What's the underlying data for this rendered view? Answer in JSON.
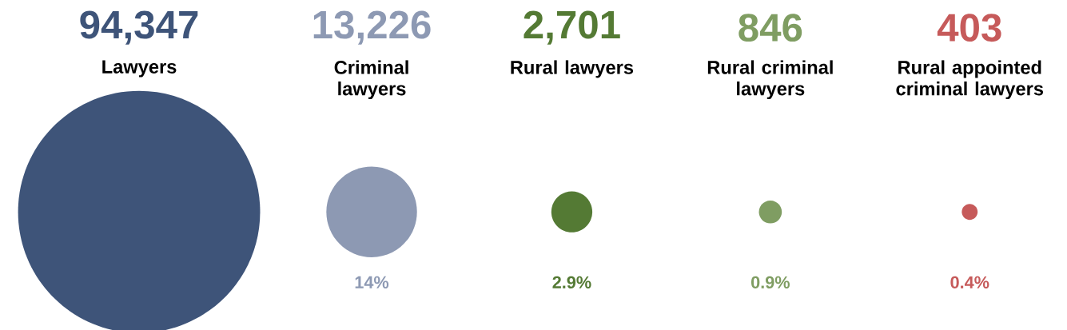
{
  "chart_data": {
    "type": "other",
    "categories": [
      "Lawyers",
      "Criminal lawyers",
      "Rural lawyers",
      "Rural criminal lawyers",
      "Rural appointed criminal lawyers"
    ],
    "values": [
      94347,
      13226,
      2701,
      846,
      403
    ],
    "value_labels": [
      "94,347",
      "13,226",
      "2,701",
      "846",
      "403"
    ],
    "colors": [
      "#3e5479",
      "#8d99b3",
      "#547a34",
      "#7f9d62",
      "#c65a5a"
    ],
    "annotations": [
      {
        "text": "14%",
        "x": "Criminal lawyers"
      },
      {
        "text": "2.9%",
        "x": "Rural lawyers"
      },
      {
        "text": "0.9%",
        "x": "Rural criminal lawyers"
      },
      {
        "text": "0.4%",
        "x": "Rural appointed criminal lawyers"
      }
    ]
  }
}
